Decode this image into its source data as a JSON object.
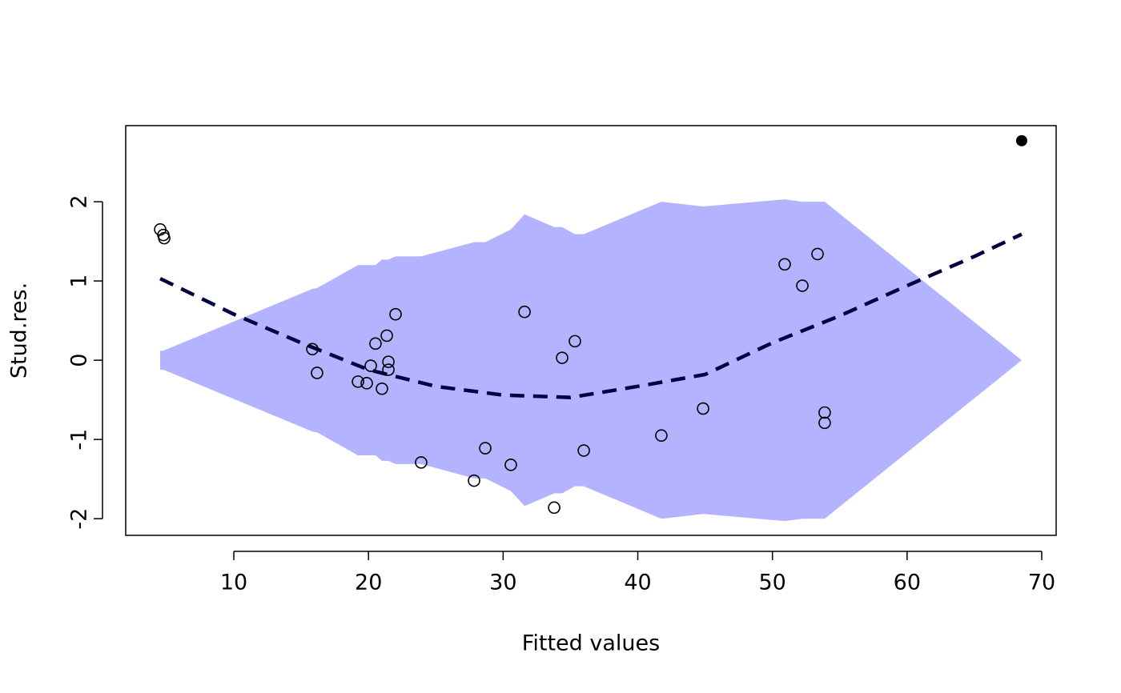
{
  "chart_data": {
    "type": "scatter",
    "xlabel": "Fitted values",
    "ylabel": "Stud.res.",
    "xlim": [
      1.97,
      71.07
    ],
    "ylim": [
      -2.21,
      2.96
    ],
    "xticks": [
      10,
      20,
      30,
      40,
      50,
      60,
      70
    ],
    "yticks": [
      -2,
      -1,
      0,
      1,
      2
    ],
    "point_color": "#000000",
    "x": [
      4.53,
      4.77,
      4.83,
      15.83,
      16.18,
      19.22,
      19.87,
      20.17,
      20.52,
      21.0,
      21.36,
      21.48,
      21.48,
      22.01,
      23.91,
      27.84,
      28.67,
      30.57,
      31.59,
      33.79,
      34.38,
      35.33,
      35.99,
      41.75,
      44.85,
      50.91,
      52.22,
      53.35,
      53.88,
      53.88
    ],
    "values": [
      1.65,
      1.58,
      1.54,
      0.14,
      -0.16,
      -0.27,
      -0.29,
      -0.07,
      0.21,
      -0.36,
      0.31,
      -0.02,
      -0.12,
      0.58,
      -1.29,
      -1.52,
      -1.11,
      -1.32,
      0.61,
      -1.86,
      0.03,
      0.24,
      -1.14,
      -0.95,
      -0.61,
      1.21,
      0.94,
      1.34,
      -0.66,
      -0.79
    ],
    "highlight": {
      "x": 68.51,
      "y": 2.77
    },
    "envelope": {
      "color": "#b3b3ff",
      "x": [
        4.53,
        4.77,
        15.83,
        16.18,
        19.22,
        20.52,
        21.0,
        21.48,
        22.01,
        23.91,
        27.84,
        28.67,
        30.57,
        31.59,
        33.79,
        34.38,
        35.33,
        35.99,
        41.75,
        44.85,
        50.91,
        52.22,
        53.88,
        68.51
      ],
      "upper": [
        0.12,
        0.12,
        0.9,
        0.91,
        1.2,
        1.2,
        1.27,
        1.27,
        1.31,
        1.31,
        1.49,
        1.49,
        1.65,
        1.84,
        1.68,
        1.68,
        1.59,
        1.59,
        2.0,
        1.94,
        2.03,
        2.0,
        2.0,
        0
      ],
      "lower": [
        -0.12,
        -0.12,
        -0.9,
        -0.91,
        -1.2,
        -1.2,
        -1.27,
        -1.27,
        -1.31,
        -1.31,
        -1.49,
        -1.49,
        -1.65,
        -1.84,
        -1.68,
        -1.68,
        -1.59,
        -1.59,
        -2.0,
        -1.94,
        -2.03,
        -2.0,
        -2.0,
        0
      ]
    },
    "trend": {
      "color": "#000040",
      "x": [
        4.53,
        10,
        15,
        20,
        25,
        30,
        35,
        40,
        45,
        50,
        55,
        60,
        65,
        68.51
      ],
      "y": [
        1.03,
        0.58,
        0.22,
        -0.12,
        -0.33,
        -0.44,
        -0.47,
        -0.33,
        -0.18,
        0.22,
        0.56,
        0.94,
        1.31,
        1.59
      ]
    }
  }
}
